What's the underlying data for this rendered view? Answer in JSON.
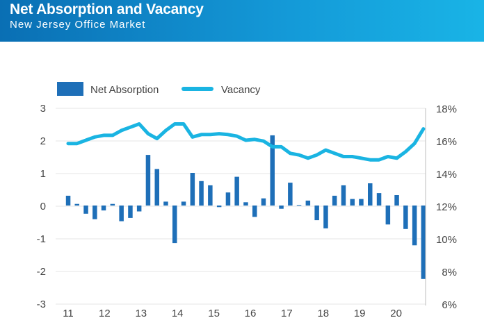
{
  "header": {
    "title": "Net Absorption and Vacancy",
    "subtitle": "New Jersey Office Market"
  },
  "colors": {
    "bar": "#1e6fb8",
    "line": "#1ab4e2",
    "grid": "#e6e6e6",
    "header_start": "#0a6fb4",
    "header_end": "#19b4e6"
  },
  "chart_data": {
    "type": "bar+line",
    "legend": {
      "placement": "top-left",
      "items": [
        "Net Absorption",
        "Vacancy"
      ]
    },
    "x_tick_labels": [
      "11",
      "12",
      "13",
      "14",
      "15",
      "16",
      "17",
      "18",
      "19",
      "20"
    ],
    "x_range": [
      2011,
      2020.75
    ],
    "left_axis": {
      "ticks": [
        "3",
        "2",
        "1",
        "0",
        "-1",
        "-2",
        "-3"
      ],
      "ylim": [
        -3,
        3
      ]
    },
    "right_axis": {
      "ticks": [
        "18%",
        "16%",
        "14%",
        "12%",
        "10%",
        "8%",
        "6%"
      ],
      "ylim": [
        6,
        18
      ]
    },
    "series": [
      {
        "name": "Net Absorption",
        "type": "bar",
        "axis": "left",
        "values": [
          0.3,
          0.05,
          -0.25,
          -0.42,
          -0.15,
          0.05,
          -0.48,
          -0.38,
          -0.18,
          1.55,
          1.12,
          0.12,
          -1.15,
          0.12,
          1.0,
          0.75,
          0.62,
          -0.05,
          0.4,
          0.88,
          0.1,
          -0.35,
          0.22,
          2.15,
          -0.1,
          0.7,
          0.02,
          0.15,
          -0.45,
          -0.7,
          0.3,
          0.62,
          0.2,
          0.2,
          0.68,
          0.38,
          -0.58,
          0.32,
          -0.72,
          -1.22,
          -2.25
        ]
      },
      {
        "name": "Vacancy",
        "type": "line",
        "axis": "right",
        "values": [
          15.8,
          15.8,
          16.0,
          16.2,
          16.3,
          16.3,
          16.6,
          16.8,
          17.0,
          16.4,
          16.1,
          16.6,
          17.0,
          17.0,
          16.2,
          16.35,
          16.35,
          16.4,
          16.35,
          16.25,
          16.0,
          16.05,
          15.95,
          15.6,
          15.6,
          15.2,
          15.1,
          14.9,
          15.1,
          15.4,
          15.2,
          15.0,
          15.0,
          14.9,
          14.8,
          14.8,
          15.0,
          14.9,
          15.3,
          15.8,
          16.7
        ]
      }
    ]
  }
}
